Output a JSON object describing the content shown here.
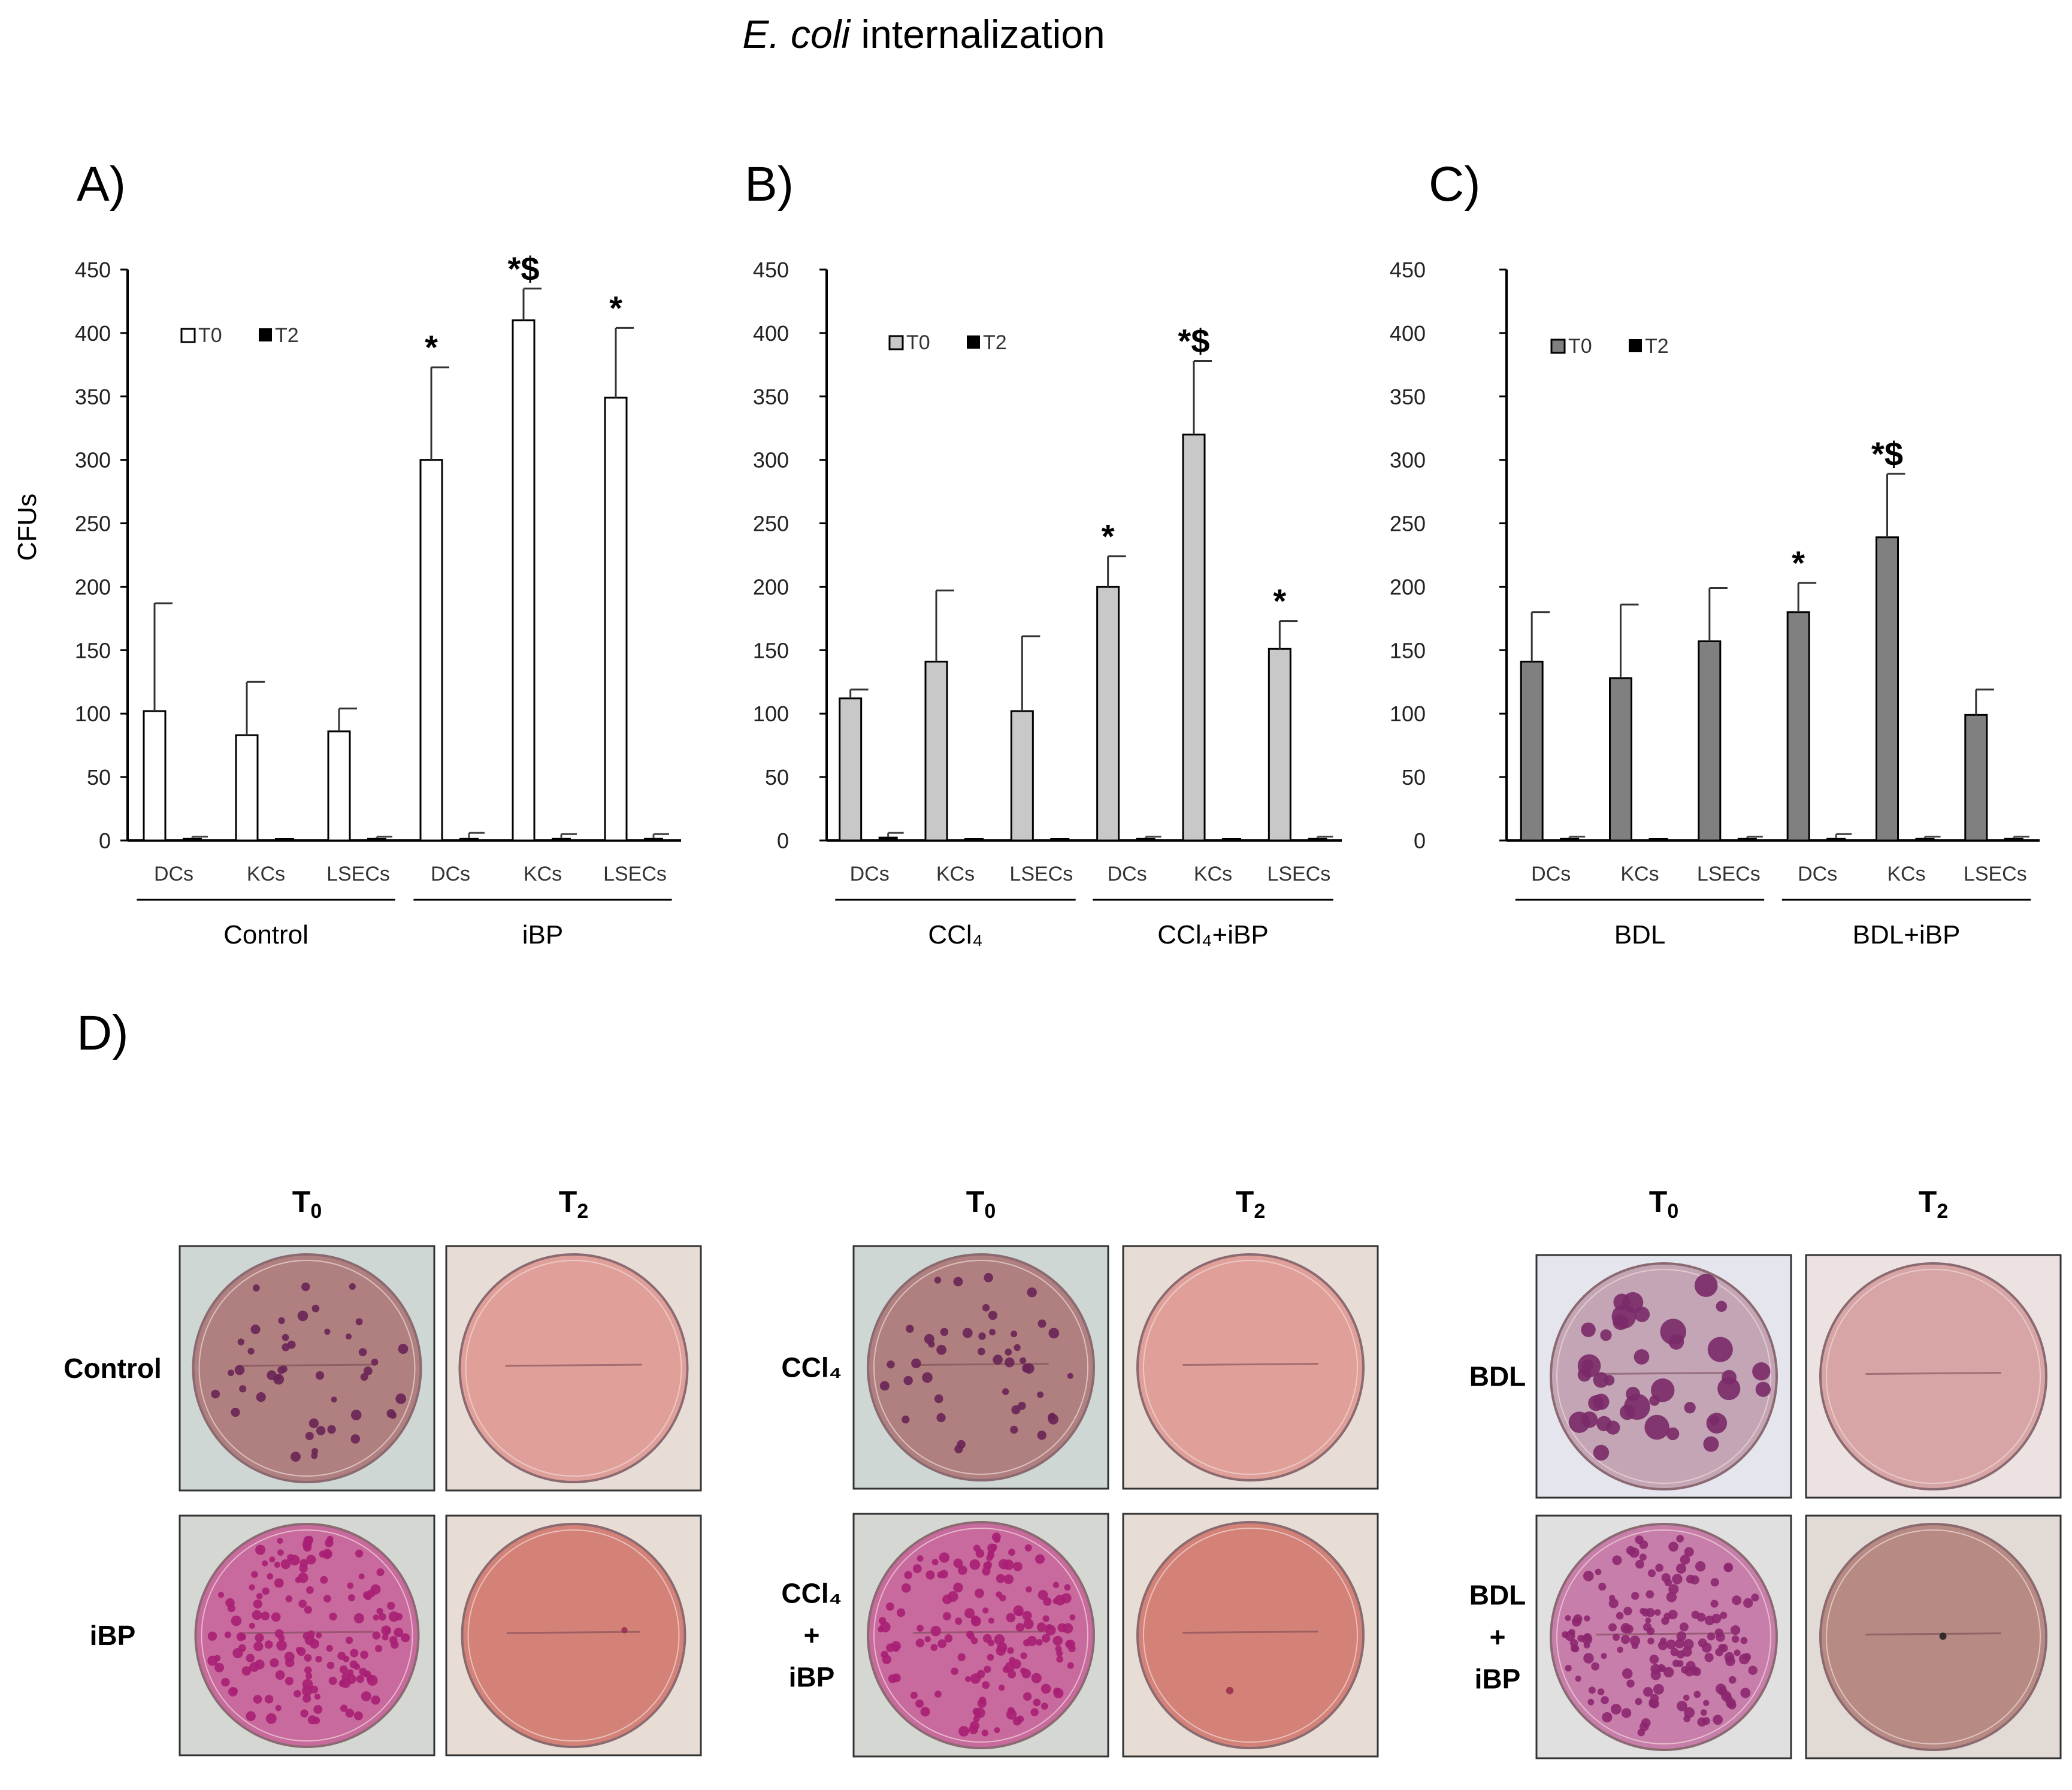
{
  "figure_title": "E. coli internalization",
  "title_italic": "E. coli",
  "title_rest": " internalization",
  "y_axis_title": "CFUs",
  "panel_d_label": "D)",
  "chart_data": [
    {
      "type": "bar",
      "panel_label": "A)",
      "ylabel": "CFUs",
      "ylim": [
        0,
        450
      ],
      "yticks": [
        0,
        50,
        100,
        150,
        200,
        250,
        300,
        350,
        400,
        450
      ],
      "categories": [
        "DCs",
        "KCs",
        "LSECs",
        "DCs",
        "KCs",
        "LSECs"
      ],
      "groups": [
        {
          "label": "Control",
          "from": 0,
          "to": 2
        },
        {
          "label": "iBP",
          "from": 3,
          "to": 5
        }
      ],
      "legend": {
        "position": "top-left",
        "entries": [
          "T0",
          "T2"
        ]
      },
      "series": [
        {
          "name": "T0",
          "color": "#ffffff",
          "values": [
            102,
            83,
            86,
            300,
            410,
            349
          ],
          "errors": [
            85,
            42,
            18,
            73,
            25,
            55
          ]
        },
        {
          "name": "T2",
          "color": "#000000",
          "values": [
            2,
            1,
            2,
            2,
            2,
            2
          ],
          "errors": [
            1,
            0,
            1,
            4,
            3,
            3
          ]
        }
      ],
      "annotations": [
        "",
        "",
        "",
        "*",
        "*$",
        "*"
      ]
    },
    {
      "type": "bar",
      "panel_label": "B)",
      "ylabel": "",
      "ylim": [
        0,
        450
      ],
      "yticks": [
        0,
        50,
        100,
        150,
        200,
        250,
        300,
        350,
        400,
        450
      ],
      "categories": [
        "DCs",
        "KCs",
        "LSECs",
        "DCs",
        "KCs",
        "LSECs"
      ],
      "groups": [
        {
          "label": "CCl₄",
          "from": 0,
          "to": 2
        },
        {
          "label": "CCl₄+iBP",
          "from": 3,
          "to": 5
        }
      ],
      "legend": {
        "position": "top-left",
        "entries": [
          "T0",
          "T2"
        ]
      },
      "series": [
        {
          "name": "T0",
          "color": "#c8c8c8",
          "values": [
            112,
            141,
            102,
            200,
            320,
            151
          ],
          "errors": [
            7,
            56,
            59,
            24,
            58,
            22
          ]
        },
        {
          "name": "T2",
          "color": "#000000",
          "values": [
            3,
            1,
            0,
            2,
            0,
            2
          ],
          "errors": [
            3,
            0,
            0,
            1,
            0,
            1
          ]
        }
      ],
      "annotations": [
        "",
        "",
        "",
        "*",
        "*$",
        "*"
      ]
    },
    {
      "type": "bar",
      "panel_label": "C)",
      "ylabel": "",
      "ylim": [
        0,
        450
      ],
      "yticks": [
        0,
        50,
        100,
        150,
        200,
        250,
        300,
        350,
        400,
        450
      ],
      "categories": [
        "DCs",
        "KCs",
        "LSECs",
        "DCs",
        "KCs",
        "LSECs"
      ],
      "groups": [
        {
          "label": "BDL",
          "from": 0,
          "to": 2
        },
        {
          "label": "BDL+iBP",
          "from": 3,
          "to": 5
        }
      ],
      "legend": {
        "position": "top-left",
        "entries": [
          "T0",
          "T2"
        ]
      },
      "series": [
        {
          "name": "T0",
          "color": "#808080",
          "values": [
            141,
            128,
            157,
            180,
            239,
            99
          ],
          "errors": [
            39,
            58,
            42,
            23,
            50,
            20
          ]
        },
        {
          "name": "T2",
          "color": "#000000",
          "values": [
            2,
            0,
            2,
            2,
            2,
            2
          ],
          "errors": [
            1,
            0,
            1,
            3,
            1,
            1
          ]
        }
      ],
      "annotations": [
        "",
        "",
        "",
        "*",
        "*$",
        ""
      ]
    }
  ],
  "plates": {
    "col_header_T0_main": "T",
    "col_header_T0_sub": "0",
    "col_header_T2_main": "T",
    "col_header_T2_sub": "2",
    "groups": [
      {
        "row_labels": [
          [
            "Control"
          ],
          [
            "iBP"
          ]
        ]
      },
      {
        "row_labels": [
          [
            "CCl₄"
          ],
          [
            "CCl₄",
            "+",
            "iBP"
          ]
        ]
      },
      {
        "row_labels": [
          [
            "BDL"
          ],
          [
            "BDL",
            "+",
            "iBP"
          ]
        ]
      }
    ]
  }
}
